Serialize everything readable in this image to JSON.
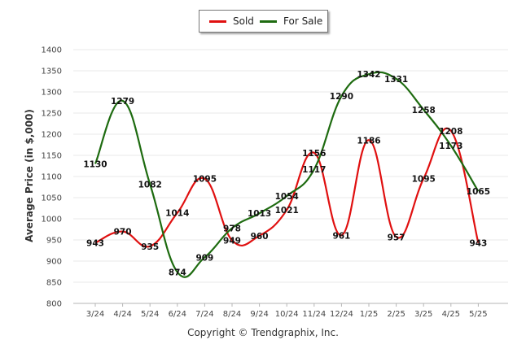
{
  "chart_data": {
    "type": "line",
    "categories": [
      "3/24",
      "4/24",
      "5/24",
      "6/24",
      "7/24",
      "8/24",
      "9/24",
      "10/24",
      "11/24",
      "12/24",
      "1/25",
      "2/25",
      "3/25",
      "4/25",
      "5/25"
    ],
    "series": [
      {
        "name": "Sold",
        "color": "#e01010",
        "values": [
          943,
          970,
          935,
          1014,
          1095,
          949,
          960,
          1021,
          1156,
          961,
          1186,
          957,
          1095,
          1208,
          943
        ]
      },
      {
        "name": "For Sale",
        "color": "#1e6b10",
        "values": [
          1130,
          1279,
          1082,
          874,
          909,
          978,
          1013,
          1054,
          1117,
          1290,
          1342,
          1331,
          1258,
          1173,
          1065
        ]
      }
    ],
    "ylabel": "Average Price (in $,000)",
    "ylim": [
      800,
      1400
    ],
    "yticks": [
      800,
      850,
      900,
      950,
      1000,
      1050,
      1100,
      1150,
      1200,
      1250,
      1300,
      1350,
      1400
    ],
    "grid": true,
    "legend": "top-center"
  },
  "legend": {
    "sold": "Sold",
    "for_sale": "For Sale"
  },
  "footer": {
    "copyright": "Copyright © Trendgraphix, Inc."
  }
}
